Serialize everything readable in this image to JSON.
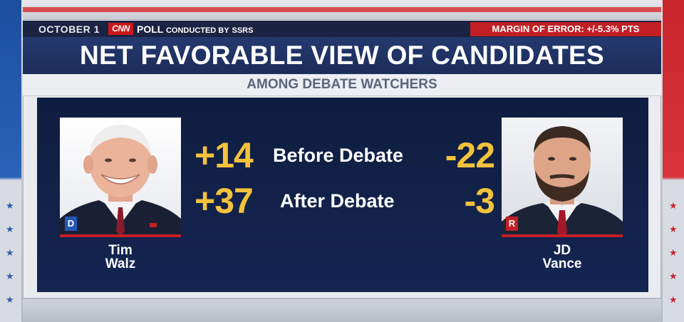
{
  "header": {
    "date": "OCTOBER 1",
    "network_logo": "CNN",
    "poll_label": "POLL",
    "conducted_by": "CONDUCTED BY",
    "pollster": "SSRS",
    "margin_of_error": "MARGIN OF ERROR: +/-5.3% PTS"
  },
  "title": "NET FAVORABLE VIEW OF CANDIDATES",
  "subtitle": "AMONG DEBATE WATCHERS",
  "rows": [
    {
      "label": "Before Debate",
      "left_value": "+14",
      "right_value": "-22"
    },
    {
      "label": "After Debate",
      "left_value": "+37",
      "right_value": "-3"
    }
  ],
  "candidates": {
    "left": {
      "first": "Tim",
      "last": "Walz",
      "party": "D",
      "party_color": "#2457b8"
    },
    "right": {
      "first": "JD",
      "last": "Vance",
      "party": "R",
      "party_color": "#c21f25"
    }
  },
  "colors": {
    "value_yellow": "#f3c23d",
    "title_navy": "#1c2d5a",
    "panel_navy": "#0f1d3f",
    "accent_red": "#c21f25"
  }
}
